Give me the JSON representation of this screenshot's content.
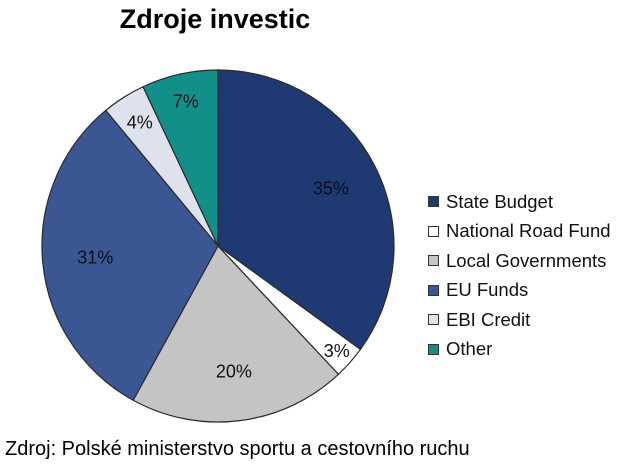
{
  "chart_data": {
    "type": "pie",
    "title": "Zdroje investic",
    "slices": [
      {
        "label": "State Budget",
        "value": 35,
        "value_label": "35%",
        "color": "#1f3a73"
      },
      {
        "label": "National Road Fund",
        "value": 3,
        "value_label": "3%",
        "color": "#ffffff"
      },
      {
        "label": "Local Governments",
        "value": 20,
        "value_label": "20%",
        "color": "#c4c4c4"
      },
      {
        "label": "EU Funds",
        "value": 31,
        "value_label": "31%",
        "color": "#3a5794"
      },
      {
        "label": "EBI Credit",
        "value": 4,
        "value_label": "4%",
        "color": "#dde2ec"
      },
      {
        "label": "Other",
        "value": 7,
        "value_label": "7%",
        "color": "#138f8a"
      }
    ],
    "start_angle": "12 o'clock",
    "direction": "clockwise",
    "legend_position": "right"
  },
  "source_note": "Zdroj: Polské ministerstvo sportu a cestovního ruchu"
}
